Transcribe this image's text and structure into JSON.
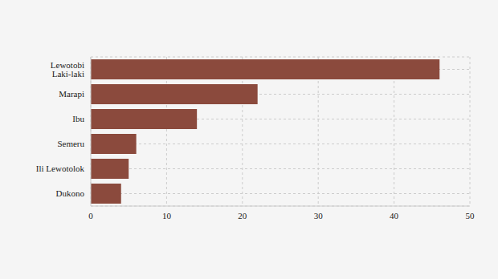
{
  "chart_data": {
    "type": "bar",
    "orientation": "horizontal",
    "categories": [
      "Lewotobi Laki-laki",
      "Marapi",
      "Ibu",
      "Semeru",
      "Ili Lewotolok",
      "Dukono"
    ],
    "values": [
      46,
      22,
      14,
      6,
      5,
      4
    ],
    "color": "#8b4a3d",
    "xlim": [
      0,
      50
    ],
    "xticks": [
      0,
      10,
      20,
      30,
      40,
      50
    ],
    "grid": true
  }
}
